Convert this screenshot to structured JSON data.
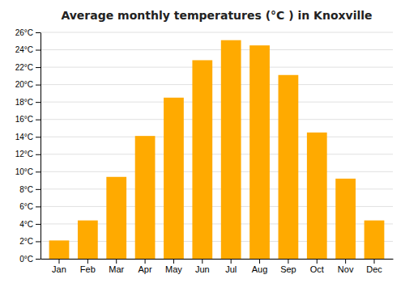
{
  "chart_data": {
    "type": "bar",
    "title": "Average monthly temperatures (°C ) in Knoxville",
    "categories": [
      "Jan",
      "Feb",
      "Mar",
      "Apr",
      "May",
      "Jun",
      "Jul",
      "Aug",
      "Sep",
      "Oct",
      "Nov",
      "Dec"
    ],
    "values": [
      2.1,
      4.4,
      9.4,
      14.1,
      18.5,
      22.8,
      25.1,
      24.5,
      21.1,
      14.5,
      9.2,
      4.4
    ],
    "color": "#FFAA00",
    "ylim": [
      0,
      26
    ],
    "yticks": [
      {
        "value": 0,
        "label": "0°C"
      },
      {
        "value": 2,
        "label": "2°C"
      },
      {
        "value": 4,
        "label": "4°C"
      },
      {
        "value": 6,
        "label": "6°C"
      },
      {
        "value": 8,
        "label": "8°C"
      },
      {
        "value": 10,
        "label": "10°C"
      },
      {
        "value": 12,
        "label": "12°C"
      },
      {
        "value": 14,
        "label": "14°C"
      },
      {
        "value": 16,
        "label": "16°C"
      },
      {
        "value": 18,
        "label": "18°C"
      },
      {
        "value": 20,
        "label": "20°C"
      },
      {
        "value": 22,
        "label": "22°C"
      },
      {
        "value": 24,
        "label": "24°C"
      },
      {
        "value": 26,
        "label": "26°C"
      }
    ],
    "grid": true
  }
}
